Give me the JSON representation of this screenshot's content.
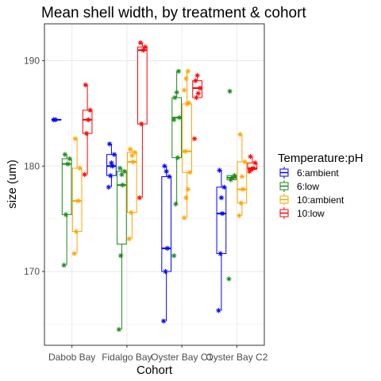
{
  "chart_data": {
    "type": "box",
    "title": "Mean shell width, by treatment & cohort",
    "xlabel": "Cohort",
    "ylabel": "size (um)",
    "ylim": [
      163,
      193.5
    ],
    "yticks": [
      170,
      180,
      190
    ],
    "categories": [
      "Dabob Bay",
      "Fidalgo Bay",
      "Oyster Bay C1",
      "Oyster Bay C2"
    ],
    "legend": {
      "title": "Temperature:pH",
      "position": "right"
    },
    "grid": true,
    "series": [
      {
        "name": "6:ambient",
        "color": "#0000ff",
        "boxes": [
          {
            "min": 184.4,
            "q1": 184.4,
            "median": 184.4,
            "q3": 184.4,
            "max": 184.4,
            "points": [
              184.4,
              184.4
            ]
          },
          {
            "min": 178.0,
            "q1": 179.1,
            "median": 180.0,
            "q3": 181.1,
            "max": 182.1,
            "points": [
              178.0,
              179.1,
              180.0,
              181.1,
              182.1,
              180.3
            ]
          },
          {
            "min": 165.3,
            "q1": 170.0,
            "median": 172.2,
            "q3": 179.0,
            "max": 180.0,
            "points": [
              165.3,
              170.0,
              172.2,
              179.0,
              180.0,
              179.5
            ]
          },
          {
            "min": 166.3,
            "q1": 171.7,
            "median": 175.5,
            "q3": 178.0,
            "max": 179.6,
            "points": [
              166.3,
              171.7,
              175.5,
              178.0,
              179.6,
              177.0
            ]
          }
        ]
      },
      {
        "name": "6:low",
        "color": "#1a8a1a",
        "boxes": [
          {
            "min": 170.6,
            "q1": 175.4,
            "median": 180.2,
            "q3": 180.7,
            "max": 181.1,
            "points": [
              170.6,
              175.4,
              180.2,
              180.7,
              181.1
            ]
          },
          {
            "min": 164.5,
            "q1": 172.6,
            "median": 178.2,
            "q3": 179.5,
            "max": 179.8,
            "points": [
              164.5,
              171.5,
              178.2,
              179.5,
              179.8,
              179.2
            ]
          },
          {
            "min": 176.4,
            "q1": 180.8,
            "median": 184.6,
            "q3": 186.5,
            "max": 189.0,
            "points": [
              171.5,
              176.4,
              180.8,
              184.6,
              186.5,
              187.0,
              189.0,
              184.4
            ]
          },
          {
            "min": 178.7,
            "q1": 178.7,
            "median": 178.9,
            "q3": 179.1,
            "max": 179.1,
            "points": [
              169.3,
              178.7,
              178.9,
              179.1,
              187.1
            ]
          }
        ]
      },
      {
        "name": "10:ambient",
        "color": "#ffa500",
        "boxes": [
          {
            "min": 171.7,
            "q1": 173.8,
            "median": 176.7,
            "q3": 179.8,
            "max": 182.6,
            "points": [
              171.7,
              173.8,
              176.7,
              179.8,
              182.6
            ]
          },
          {
            "min": 173.1,
            "q1": 175.6,
            "median": 180.4,
            "q3": 181.3,
            "max": 181.6,
            "points": [
              173.1,
              175.6,
              180.4,
              181.3,
              181.6,
              181.0
            ]
          },
          {
            "min": 175.1,
            "q1": 179.4,
            "median": 181.4,
            "q3": 185.9,
            "max": 189.0,
            "points": [
              175.1,
              177.0,
              177.8,
              179.4,
              181.4,
              185.9,
              186.0,
              187.2,
              188.3,
              189.0
            ]
          },
          {
            "min": 175.3,
            "q1": 176.5,
            "median": 177.8,
            "q3": 180.4,
            "max": 183.0,
            "points": [
              175.3,
              176.5,
              177.8,
              180.4,
              183.0,
              179.0
            ]
          }
        ]
      },
      {
        "name": "10:low",
        "color": "#ff0000",
        "boxes": [
          {
            "min": 179.2,
            "q1": 183.1,
            "median": 184.4,
            "q3": 185.3,
            "max": 187.7,
            "points": [
              179.2,
              183.1,
              184.4,
              185.3,
              187.7
            ]
          },
          {
            "min": 177.0,
            "q1": 184.0,
            "median": 191.0,
            "q3": 191.3,
            "max": 191.7,
            "points": [
              177.0,
              184.0,
              191.0,
              191.3,
              191.7
            ]
          },
          {
            "min": 186.5,
            "q1": 186.5,
            "median": 187.4,
            "q3": 188.1,
            "max": 188.6,
            "points": [
              182.6,
              186.5,
              186.9,
              187.4,
              188.1,
              188.6
            ]
          },
          {
            "min": 179.5,
            "q1": 179.7,
            "median": 179.8,
            "q3": 180.3,
            "max": 180.9,
            "points": [
              179.5,
              179.7,
              179.8,
              180.3,
              180.9
            ]
          }
        ]
      }
    ]
  }
}
